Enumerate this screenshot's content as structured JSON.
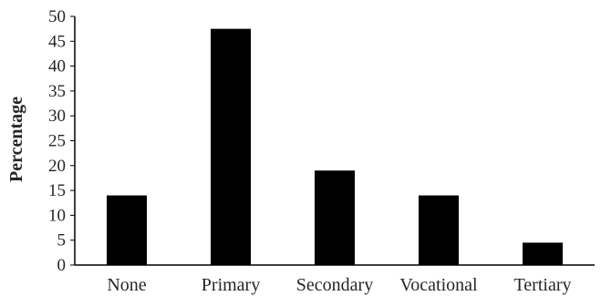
{
  "chart_data": {
    "type": "bar",
    "title": "",
    "xlabel": "",
    "ylabel": "Percentage",
    "categories": [
      "None",
      "Primary",
      "Secondary",
      "Vocational",
      "Tertiary"
    ],
    "values": [
      14,
      47.5,
      19,
      14,
      4.5
    ],
    "ylim": [
      0,
      50
    ],
    "yticks": [
      0,
      5,
      10,
      15,
      20,
      25,
      30,
      35,
      40,
      45,
      50
    ],
    "grid": false,
    "legend": "none",
    "colors": {
      "bar": "#000000",
      "axis": "#000000",
      "text": "#262626"
    }
  }
}
